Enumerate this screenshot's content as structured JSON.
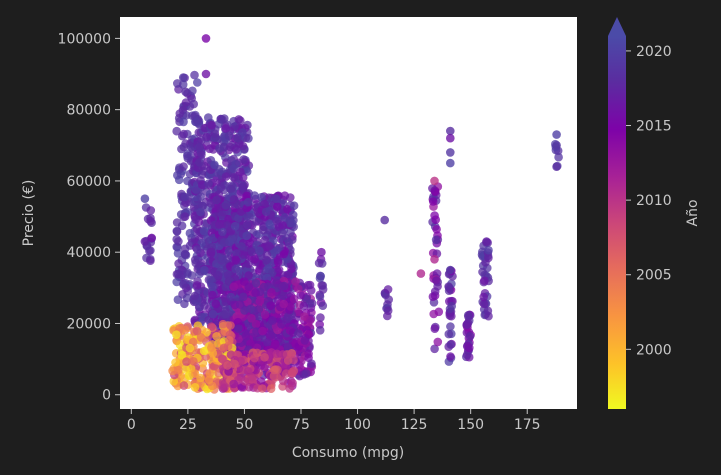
{
  "chart_data": {
    "type": "scatter",
    "title": "",
    "xlabel": "Consumo (mpg)",
    "ylabel": "Precio (€)",
    "xlim": [
      -5,
      197
    ],
    "ylim": [
      -4000,
      106000
    ],
    "xticks": [
      0,
      25,
      50,
      75,
      100,
      125,
      150,
      175
    ],
    "yticks": [
      0,
      20000,
      40000,
      60000,
      80000,
      100000
    ],
    "grid": false,
    "colorbar": {
      "label": "Año",
      "range": [
        1996,
        2021
      ],
      "ticks": [
        2000,
        2005,
        2010,
        2015,
        2020
      ],
      "colormap": "plasma_r",
      "extend": "max"
    },
    "series": [
      {
        "clusters": [
          {
            "x": [
              6,
              9
            ],
            "y": [
              34000,
              55000
            ],
            "year": [
              2017,
              2019
            ],
            "n": 16
          },
          {
            "x": [
              20,
              30
            ],
            "y": [
              25000,
              90000
            ],
            "year": [
              2017,
              2020
            ],
            "n": 160
          },
          {
            "x": [
              28,
              52
            ],
            "y": [
              20000,
              78000
            ],
            "year": [
              2016,
              2020
            ],
            "n": 520
          },
          {
            "x": [
              35,
              72
            ],
            "y": [
              9000,
              56000
            ],
            "year": [
              2015,
              2020
            ],
            "n": 900
          },
          {
            "x": [
              45,
              80
            ],
            "y": [
              5000,
              32000
            ],
            "year": [
              2012,
              2018
            ],
            "n": 420
          },
          {
            "x": [
              18,
              45
            ],
            "y": [
              1500,
              20000
            ],
            "year": [
              1997,
              2009
            ],
            "n": 220
          },
          {
            "x": [
              40,
              72
            ],
            "y": [
              1500,
              12000
            ],
            "year": [
              2006,
              2014
            ],
            "n": 160
          },
          {
            "x": [
              83,
              85
            ],
            "y": [
              18000,
              40000
            ],
            "year": [
              2015,
              2020
            ],
            "n": 16
          },
          {
            "x": [
              112,
              114
            ],
            "y": [
              22000,
              30000
            ],
            "year": [
              2016,
              2019
            ],
            "n": 10
          },
          {
            "x": [
              133,
              136
            ],
            "y": [
              12000,
              60000
            ],
            "year": [
              2012,
              2019
            ],
            "n": 40
          },
          {
            "x": [
              140,
              142
            ],
            "y": [
              9000,
              35000
            ],
            "year": [
              2014,
              2020
            ],
            "n": 30
          },
          {
            "x": [
              148,
              150
            ],
            "y": [
              10000,
              23000
            ],
            "year": [
              2014,
              2019
            ],
            "n": 25
          },
          {
            "x": [
              155,
              158
            ],
            "y": [
              22000,
              43000
            ],
            "year": [
              2016,
              2020
            ],
            "n": 35
          },
          {
            "x": [
              187,
              189
            ],
            "y": [
              64000,
              73000
            ],
            "year": [
              2018,
              2020
            ],
            "n": 6
          }
        ],
        "points": [
          {
            "x": 33,
            "y": 100000,
            "year": 2015
          },
          {
            "x": 33,
            "y": 90000,
            "year": 2016
          },
          {
            "x": 47,
            "y": 72000,
            "year": 2018
          },
          {
            "x": 112,
            "y": 49000,
            "year": 2018
          },
          {
            "x": 128,
            "y": 34000,
            "year": 2011
          },
          {
            "x": 141,
            "y": 74000,
            "year": 2018
          },
          {
            "x": 141,
            "y": 72000,
            "year": 2016
          },
          {
            "x": 141,
            "y": 68000,
            "year": 2019
          },
          {
            "x": 141,
            "y": 65000,
            "year": 2020
          },
          {
            "x": 141,
            "y": 35000,
            "year": 2019
          },
          {
            "x": 134,
            "y": 60000,
            "year": 2010
          },
          {
            "x": 134,
            "y": 38000,
            "year": 2011
          },
          {
            "x": 6,
            "y": 55000,
            "year": 2020
          },
          {
            "x": 6,
            "y": 43000,
            "year": 2017
          },
          {
            "x": 9,
            "y": 44000,
            "year": 2016
          },
          {
            "x": 23,
            "y": 89000,
            "year": 2019
          },
          {
            "x": 24,
            "y": 85000,
            "year": 2018
          },
          {
            "x": 64,
            "y": 55000,
            "year": 2019
          },
          {
            "x": 84,
            "y": 40000,
            "year": 2016
          },
          {
            "x": 157,
            "y": 43000,
            "year": 2017
          },
          {
            "x": 188,
            "y": 73000,
            "year": 2020
          },
          {
            "x": 188,
            "y": 70000,
            "year": 2019
          },
          {
            "x": 188,
            "y": 64000,
            "year": 2018
          }
        ]
      }
    ]
  }
}
